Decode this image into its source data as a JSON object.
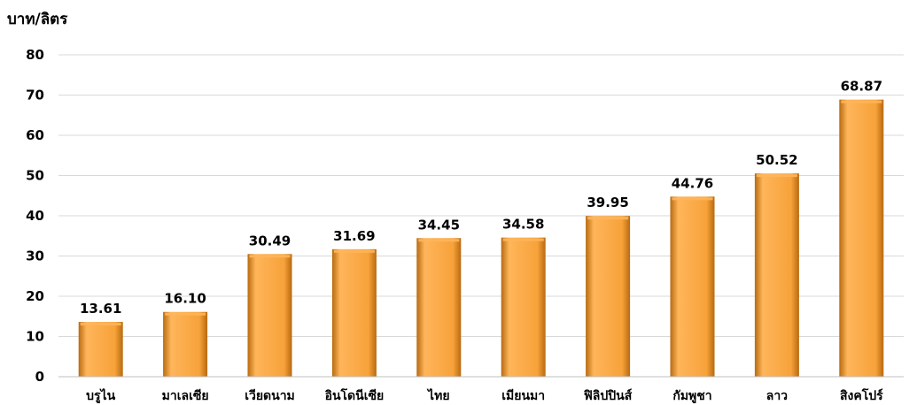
{
  "chart_data": {
    "type": "bar",
    "title": "",
    "xlabel": "",
    "ylabel": "บาท/ลิตร",
    "ylim": [
      0,
      80
    ],
    "yticks": [
      0,
      10,
      20,
      30,
      40,
      50,
      60,
      70,
      80
    ],
    "grid": true,
    "categories": [
      "บรูไน",
      "มาเลเซีย",
      "เวียดนาม",
      "อินโดนีเซีย",
      "ไทย",
      "เมียนมา",
      "ฟิลิปปินส์",
      "กัมพูชา",
      "ลาว",
      "สิงคโปร์"
    ],
    "values": [
      13.61,
      16.1,
      30.49,
      31.69,
      34.45,
      34.58,
      39.95,
      44.76,
      50.52,
      68.87
    ],
    "value_labels": [
      "13.61",
      "16.10",
      "30.49",
      "31.69",
      "34.45",
      "34.58",
      "39.95",
      "44.76",
      "50.52",
      "68.87"
    ],
    "colors": {
      "bar_light": "#ffb55a",
      "bar_mid": "#f7a23a",
      "bar_dark": "#b86a10",
      "grid": "#d9d9d9",
      "axis": "#bfbfbf"
    }
  }
}
